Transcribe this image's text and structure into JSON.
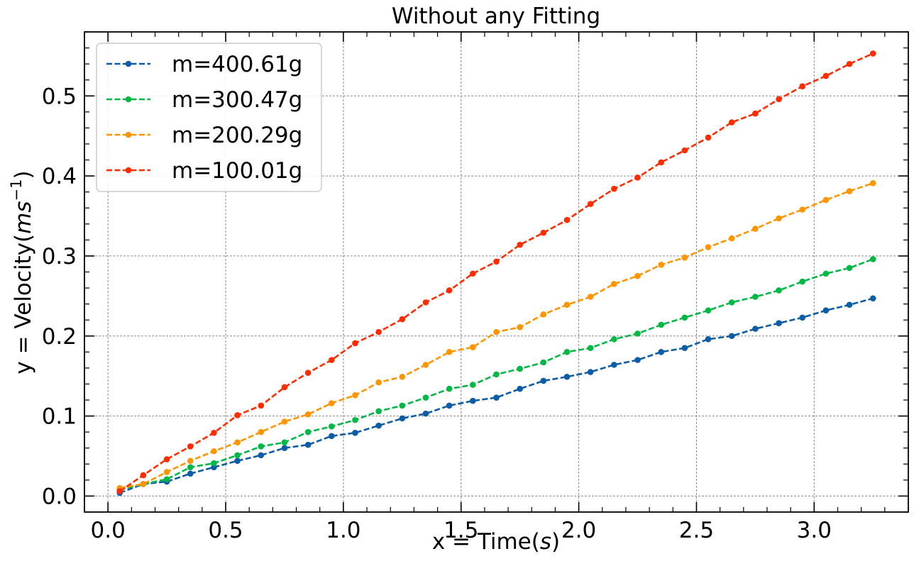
{
  "chart_data": {
    "type": "line",
    "title": "Without any Fitting",
    "xlabel": "x = Time(",
    "xlabel_italic": "s",
    "xlabel_end": ")",
    "ylabel": "y = Velocity(",
    "ylabel_italic": "ms",
    "ylabel_sup": "−1",
    "ylabel_end": ")",
    "xlim": [
      -0.1,
      3.4
    ],
    "ylim": [
      -0.02,
      0.58
    ],
    "x_ticks": [
      0.0,
      0.5,
      1.0,
      1.5,
      2.0,
      2.5,
      3.0
    ],
    "x_tick_labels": [
      "0.0",
      "0.5",
      "1.0",
      "1.5",
      "2.0",
      "2.5",
      "3.0"
    ],
    "y_ticks": [
      0.0,
      0.1,
      0.2,
      0.3,
      0.4,
      0.5
    ],
    "y_tick_labels": [
      "0.0",
      "0.1",
      "0.2",
      "0.3",
      "0.4",
      "0.5"
    ],
    "grid": true,
    "legend_position": "top-left",
    "x": [
      0.05,
      0.15,
      0.25,
      0.35,
      0.45,
      0.55,
      0.65,
      0.75,
      0.85,
      0.95,
      1.05,
      1.15,
      1.25,
      1.35,
      1.45,
      1.55,
      1.65,
      1.75,
      1.85,
      1.95,
      2.05,
      2.15,
      2.25,
      2.35,
      2.45,
      2.55,
      2.65,
      2.75,
      2.85,
      2.95,
      3.05,
      3.15,
      3.25
    ],
    "series": [
      {
        "name": "m=400.61g",
        "color": "#0C5DA5",
        "values": [
          0.004,
          0.015,
          0.018,
          0.028,
          0.036,
          0.044,
          0.051,
          0.06,
          0.064,
          0.075,
          0.079,
          0.088,
          0.097,
          0.103,
          0.113,
          0.119,
          0.123,
          0.134,
          0.144,
          0.149,
          0.155,
          0.164,
          0.17,
          0.18,
          0.185,
          0.196,
          0.2,
          0.209,
          0.216,
          0.223,
          0.232,
          0.239,
          0.247
        ]
      },
      {
        "name": "m=300.47g",
        "color": "#00B945",
        "values": [
          0.008,
          0.015,
          0.021,
          0.036,
          0.041,
          0.051,
          0.062,
          0.067,
          0.08,
          0.087,
          0.095,
          0.106,
          0.113,
          0.123,
          0.134,
          0.139,
          0.152,
          0.159,
          0.167,
          0.18,
          0.185,
          0.196,
          0.203,
          0.214,
          0.223,
          0.232,
          0.242,
          0.249,
          0.257,
          0.268,
          0.278,
          0.285,
          0.296
        ]
      },
      {
        "name": "m=200.29g",
        "color": "#FF9500",
        "values": [
          0.01,
          0.015,
          0.03,
          0.044,
          0.056,
          0.067,
          0.08,
          0.093,
          0.102,
          0.116,
          0.126,
          0.142,
          0.149,
          0.164,
          0.18,
          0.186,
          0.205,
          0.211,
          0.227,
          0.239,
          0.249,
          0.265,
          0.275,
          0.289,
          0.298,
          0.311,
          0.322,
          0.334,
          0.347,
          0.358,
          0.37,
          0.381,
          0.391
        ]
      },
      {
        "name": "m=100.01g",
        "color": "#FF2C00",
        "values": [
          0.006,
          0.026,
          0.046,
          0.062,
          0.079,
          0.101,
          0.113,
          0.136,
          0.154,
          0.17,
          0.191,
          0.205,
          0.221,
          0.242,
          0.257,
          0.278,
          0.293,
          0.314,
          0.329,
          0.345,
          0.365,
          0.384,
          0.398,
          0.417,
          0.432,
          0.448,
          0.467,
          0.478,
          0.496,
          0.512,
          0.525,
          0.54,
          0.553
        ]
      }
    ]
  }
}
